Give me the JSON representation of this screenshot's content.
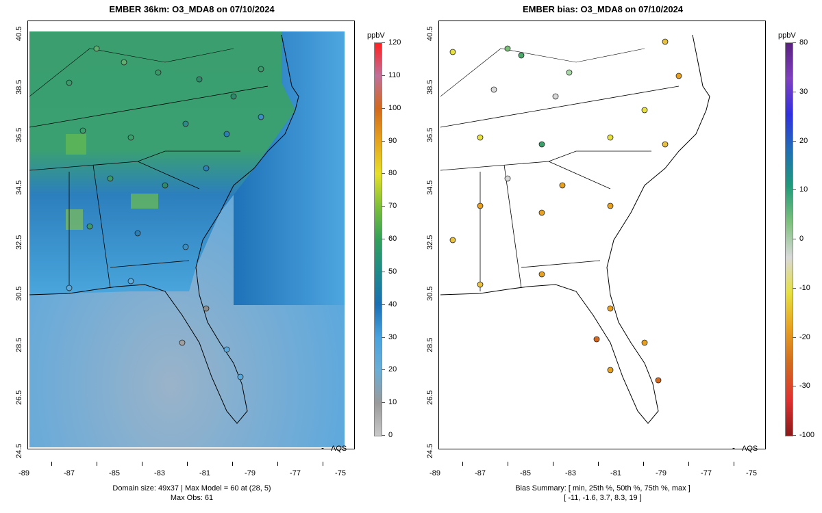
{
  "left_panel": {
    "title": "EMBER 36km: O3_MDA8 on 07/10/2024",
    "caption_line1": "Domain size: 49x37 | Max Model = 60 at (28, 5)",
    "caption_line2": "Max Obs: 61",
    "legend_label": "AQS",
    "colorbar": {
      "unit": "ppbV",
      "labels": [
        "0",
        "10",
        "20",
        "30",
        "40",
        "50",
        "60",
        "70",
        "80",
        "90",
        "100",
        "110",
        "120"
      ],
      "colors": [
        "#c8c8c8",
        "#9a9a9a",
        "#6baed6",
        "#4aa3df",
        "#1a6fb5",
        "#1f8a8a",
        "#33a05a",
        "#7cbf3a",
        "#e6e02a",
        "#e6a41f",
        "#d2691e",
        "#c0709a",
        "#ff2020"
      ]
    },
    "x_ticks": [
      "-89",
      "-87",
      "-85",
      "-83",
      "-81",
      "-79",
      "-77",
      "-75"
    ],
    "y_ticks": [
      "40.5",
      "38.5",
      "36.5",
      "34.5",
      "32.5",
      "30.5",
      "28.5",
      "26.5",
      "24.5"
    ]
  },
  "right_panel": {
    "title": "EMBER bias: O3_MDA8 on 07/10/2024",
    "caption_line1": "Bias Summary: [ min, 25th %, 50th %, 75th %, max ]",
    "caption_line2": "[ -11,  -1.6,  3.7,  8.3,  19 ]",
    "legend_label": "AQS",
    "colorbar": {
      "unit": "ppbV",
      "labels": [
        "80",
        "30",
        "20",
        "10",
        "0",
        "-10",
        "-20",
        "-30",
        "-100"
      ],
      "colors": [
        "#8b1a1a",
        "#e03030",
        "#d2691e",
        "#e8a020",
        "#e6e040",
        "#d9d9d9",
        "#7cc07c",
        "#1f9a7a",
        "#1f6fb5",
        "#3030e0",
        "#8040c0",
        "#5a2080"
      ]
    },
    "x_ticks": [
      "-89",
      "-87",
      "-85",
      "-83",
      "-81",
      "-79",
      "-77",
      "-75"
    ],
    "y_ticks": [
      "40.5",
      "38.5",
      "36.5",
      "34.5",
      "32.5",
      "30.5",
      "28.5",
      "26.5",
      "24.5"
    ]
  },
  "colors": {
    "ocean_far": "#8fb6d6",
    "ocean_near": "#5aaae0",
    "land_green": "#3aa06a",
    "land_blue": "#2e86c1"
  }
}
